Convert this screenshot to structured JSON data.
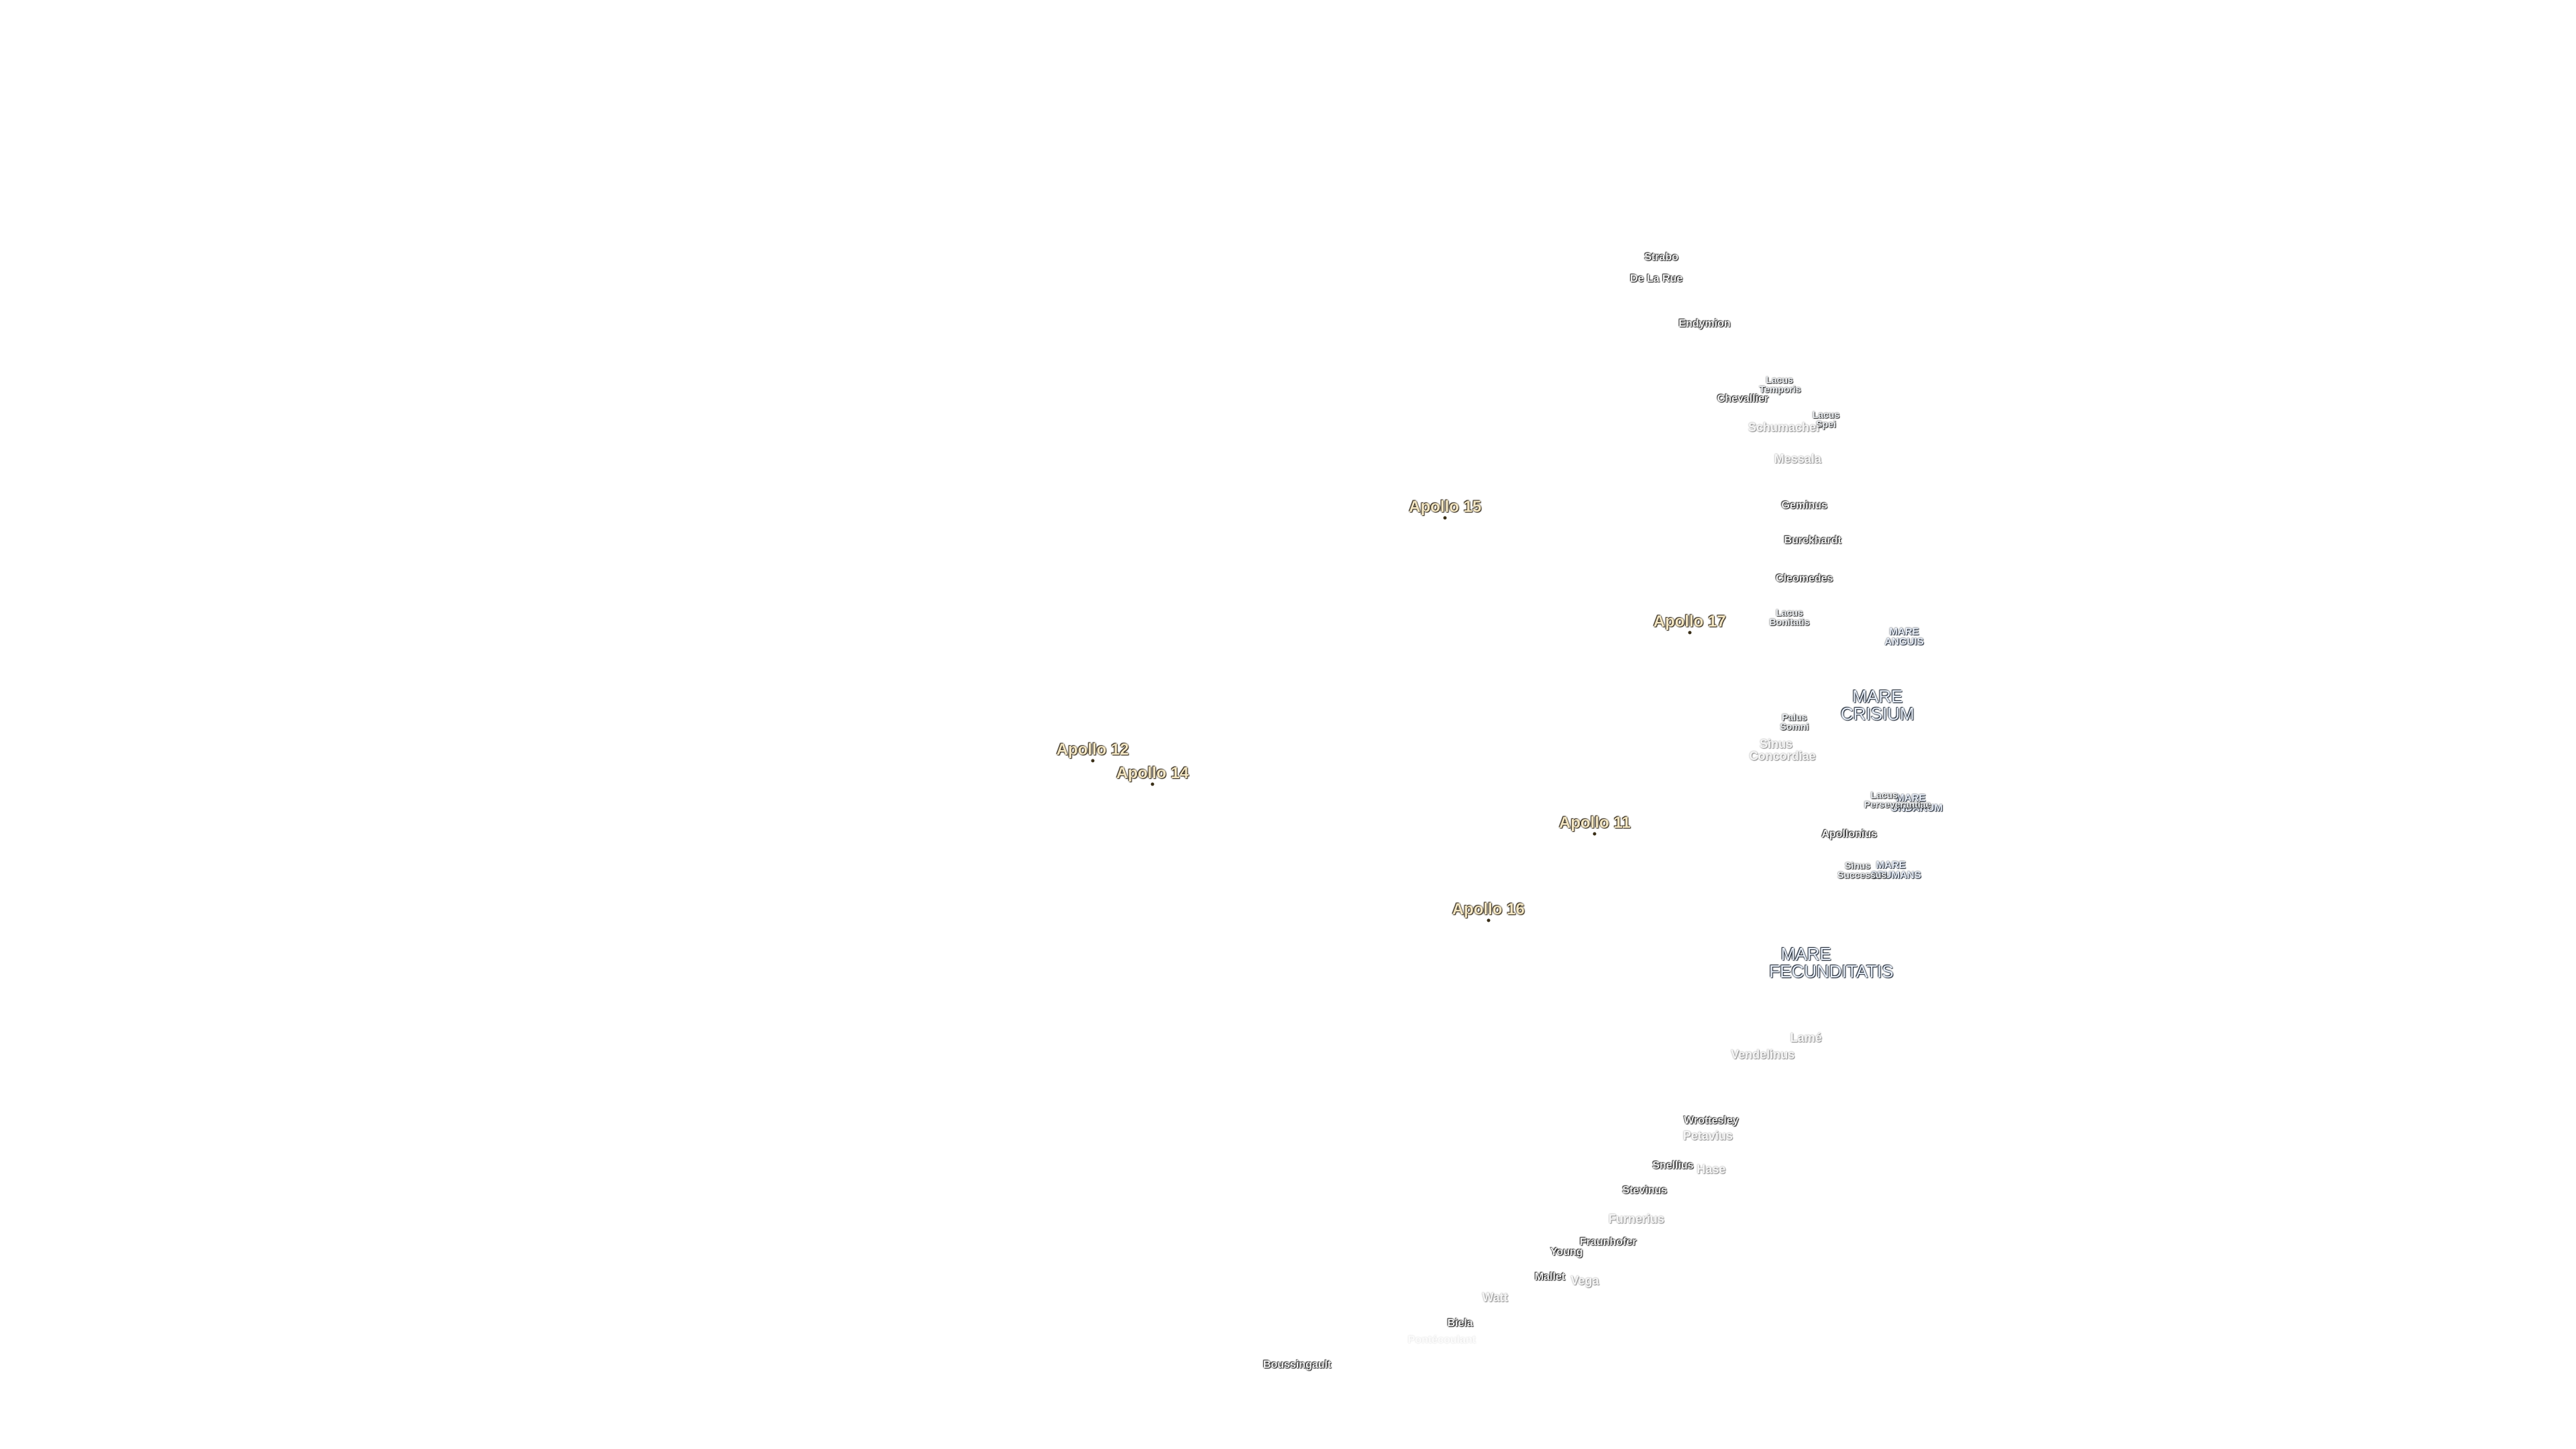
{
  "landing_sites": [
    "Apollo 15",
    "Apollo 17",
    "Apollo 12",
    "Apollo 14",
    "Apollo 11",
    "Apollo 16"
  ],
  "maria": [
    "MARE CRISIUM",
    "MARE FECUNDITATIS"
  ],
  "small_maria": [
    "MARE ANGUIS",
    "MARE UNDARUM",
    "MARE SPUMANS"
  ],
  "lakes": [
    "Lacus Temporis",
    "Lacus Spei",
    "Lacus Bonitatis",
    "Palus Somni",
    "Lacus Perseverantiae",
    "Sinus Successus"
  ],
  "faint_lakes": [
    "Sinus Concordiae"
  ],
  "craters": [
    "Strabo",
    "De La Rue",
    "Endymion",
    "Chevallier",
    "Geminus",
    "Burckhardt",
    "Cleomedes",
    "Apollonius",
    "Wrottesley",
    "Snellius",
    "Stevinus",
    "Fraunhofer",
    "Young",
    "Mallet",
    "Biela",
    "Boussingault"
  ],
  "faint_craters": [
    "Schumacher",
    "Messala",
    "Lamé",
    "Vendelinus",
    "Petavius",
    "Hase",
    "Furnerius",
    "Vega",
    "Watt"
  ],
  "very_faint_craters": [
    "Pontécoulant"
  ]
}
